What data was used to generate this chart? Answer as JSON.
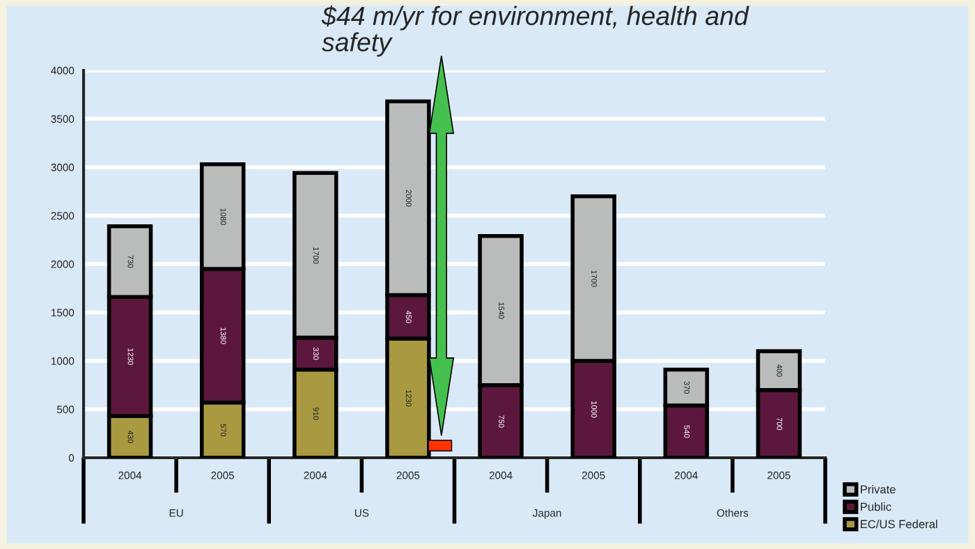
{
  "chart_data": {
    "type": "bar",
    "stacked": true,
    "categories": [
      "2004",
      "2005",
      "2004",
      "2005",
      "2004",
      "2005",
      "2004",
      "2005"
    ],
    "series": [
      {
        "name": "EC/US Federal",
        "color": "#a99a42",
        "values": [
          430,
          570,
          910,
          1230,
          null,
          null,
          null,
          null
        ]
      },
      {
        "name": "Public",
        "color": "#5c173d",
        "values": [
          1230,
          1380,
          330,
          450,
          750,
          1000,
          540,
          700
        ]
      },
      {
        "name": "Private",
        "color": "#b9bcbb",
        "values": [
          730,
          1080,
          1700,
          2000,
          1540,
          1700,
          370,
          400
        ]
      }
    ],
    "ylim": [
      0,
      4000
    ],
    "yticks": [
      0,
      500,
      1000,
      1500,
      2000,
      2500,
      3000,
      3500,
      4000
    ],
    "grid": "y",
    "legend": "bottom right",
    "data_labels": true,
    "annotations": [
      "$44 m/yr for environment, health and safety",
      "EU",
      "US",
      "Japan",
      "Others"
    ]
  }
}
